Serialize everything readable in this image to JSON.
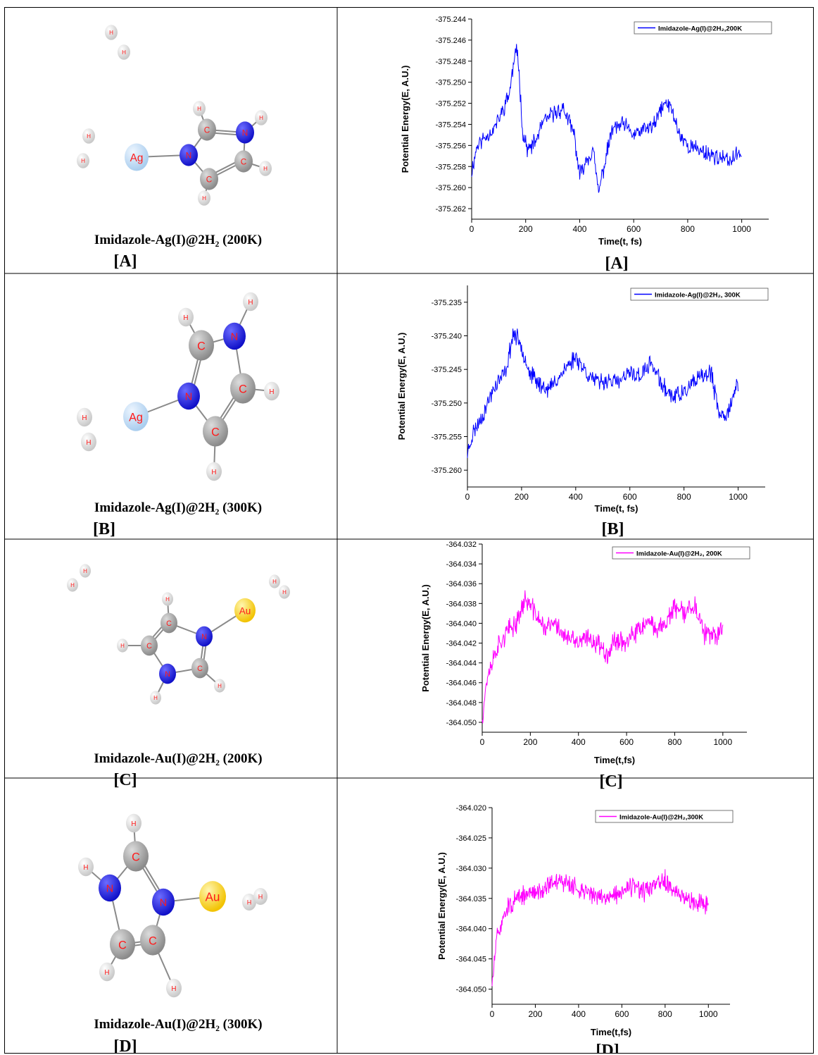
{
  "panels": [
    {
      "letter": "[A]",
      "molecule": {
        "caption": "Imidazole-Ag(I)@2H₂ (200K)",
        "metal": "Ag",
        "metal_color": "#a9cdee",
        "atoms": {
          "H": "H",
          "C": "C",
          "N": "N"
        }
      },
      "chart_data": {
        "type": "line",
        "xlabel": "Time(t, fs)",
        "ylabel": "Potential Energy(E, A.U.)",
        "xlim": [
          0,
          1100
        ],
        "ylim": [
          -375.263,
          -375.244
        ],
        "xticks": [
          0,
          200,
          400,
          600,
          800,
          1000
        ],
        "yticks": [
          -375.262,
          -375.26,
          -375.258,
          -375.256,
          -375.254,
          -375.252,
          -375.25,
          -375.248,
          -375.246,
          -375.244
        ],
        "tick_decimals": 3,
        "legend_position": "top-right",
        "series": [
          {
            "name": "Imidazole-Ag(I)@2H₂,200K",
            "color": "#0000ff",
            "x_range": [
              0,
              1000
            ],
            "keyframes": [
              [
                0,
                -375.2585
              ],
              [
                20,
                -375.256
              ],
              [
                50,
                -375.2552
              ],
              [
                80,
                -375.2545
              ],
              [
                110,
                -375.253
              ],
              [
                140,
                -375.251
              ],
              [
                160,
                -375.2475
              ],
              [
                170,
                -375.247
              ],
              [
                190,
                -375.255
              ],
              [
                210,
                -375.2565
              ],
              [
                240,
                -375.2555
              ],
              [
                260,
                -375.254
              ],
              [
                300,
                -375.253
              ],
              [
                340,
                -375.2525
              ],
              [
                380,
                -375.255
              ],
              [
                400,
                -375.259
              ],
              [
                420,
                -375.2575
              ],
              [
                450,
                -375.2565
              ],
              [
                470,
                -375.2605
              ],
              [
                490,
                -375.258
              ],
              [
                520,
                -375.2545
              ],
              [
                560,
                -375.254
              ],
              [
                600,
                -375.255
              ],
              [
                640,
                -375.2545
              ],
              [
                680,
                -375.254
              ],
              [
                700,
                -375.2525
              ],
              [
                720,
                -375.252
              ],
              [
                740,
                -375.2525
              ],
              [
                770,
                -375.255
              ],
              [
                800,
                -375.256
              ],
              [
                850,
                -375.2565
              ],
              [
                900,
                -375.257
              ],
              [
                950,
                -375.2575
              ],
              [
                980,
                -375.257
              ],
              [
                1000,
                -375.2565
              ]
            ],
            "noise": 0.0012
          }
        ]
      }
    },
    {
      "letter": "[B]",
      "molecule": {
        "caption": "Imidazole-Ag(I)@2H₂ (300K)",
        "metal": "Ag",
        "metal_color": "#a9cdee",
        "atoms": {
          "H": "H",
          "C": "C",
          "N": "N"
        }
      },
      "chart_data": {
        "type": "line",
        "xlabel": "Time(t, fs)",
        "ylabel": "Potential Energy(E, A.U.)",
        "xlim": [
          0,
          1100
        ],
        "ylim": [
          -375.2625,
          -375.2325
        ],
        "xticks": [
          0,
          200,
          400,
          600,
          800,
          1000
        ],
        "yticks": [
          -375.26,
          -375.255,
          -375.25,
          -375.245,
          -375.24,
          -375.235
        ],
        "tick_decimals": 3,
        "legend_position": "top-right",
        "series": [
          {
            "name": "Imidazole-Ag(I)@2H₂, 300K",
            "color": "#0000ff",
            "x_range": [
              0,
              1000
            ],
            "keyframes": [
              [
                0,
                -375.2575
              ],
              [
                20,
                -375.2545
              ],
              [
                60,
                -375.2515
              ],
              [
                100,
                -375.2475
              ],
              [
                140,
                -375.2455
              ],
              [
                170,
                -375.2395
              ],
              [
                200,
                -375.2415
              ],
              [
                230,
                -375.2455
              ],
              [
                260,
                -375.247
              ],
              [
                300,
                -375.248
              ],
              [
                330,
                -375.2465
              ],
              [
                370,
                -375.2445
              ],
              [
                400,
                -375.243
              ],
              [
                440,
                -375.2455
              ],
              [
                480,
                -375.247
              ],
              [
                520,
                -375.2465
              ],
              [
                560,
                -375.247
              ],
              [
                600,
                -375.2455
              ],
              [
                640,
                -375.246
              ],
              [
                680,
                -375.244
              ],
              [
                720,
                -375.2475
              ],
              [
                760,
                -375.249
              ],
              [
                800,
                -375.2485
              ],
              [
                850,
                -375.2465
              ],
              [
                900,
                -375.2455
              ],
              [
                930,
                -375.252
              ],
              [
                960,
                -375.2515
              ],
              [
                1000,
                -375.247
              ]
            ],
            "noise": 0.002
          }
        ]
      }
    },
    {
      "letter": "[C]",
      "molecule": {
        "caption": "Imidazole-Au(I)@2H₂ (200K)",
        "metal": "Au",
        "metal_color": "#f2c200",
        "atoms": {
          "H": "H",
          "C": "C",
          "N": "N"
        }
      },
      "chart_data": {
        "type": "line",
        "xlabel": "Time(t,fs)",
        "ylabel": "Potential Energy(E, A.U.)",
        "xlim": [
          0,
          1100
        ],
        "ylim": [
          -364.051,
          -364.032
        ],
        "xticks": [
          0,
          200,
          400,
          600,
          800,
          1000
        ],
        "yticks": [
          -364.05,
          -364.048,
          -364.046,
          -364.044,
          -364.042,
          -364.04,
          -364.038,
          -364.036,
          -364.034,
          -364.032
        ],
        "tick_decimals": 3,
        "legend_position": "top-right",
        "series": [
          {
            "name": "Imidazole-Au(I)@2H₂, 200K",
            "color": "#ff00ff",
            "x_range": [
              0,
              1000
            ],
            "keyframes": [
              [
                0,
                -364.0495
              ],
              [
                20,
                -364.0455
              ],
              [
                60,
                -364.0425
              ],
              [
                100,
                -364.041
              ],
              [
                140,
                -364.04
              ],
              [
                180,
                -364.0375
              ],
              [
                220,
                -364.039
              ],
              [
                260,
                -364.0405
              ],
              [
                300,
                -364.04
              ],
              [
                350,
                -364.0415
              ],
              [
                400,
                -364.042
              ],
              [
                440,
                -364.0415
              ],
              [
                480,
                -364.042
              ],
              [
                520,
                -364.043
              ],
              [
                560,
                -364.0415
              ],
              [
                600,
                -364.042
              ],
              [
                640,
                -364.041
              ],
              [
                680,
                -364.04
              ],
              [
                720,
                -364.0405
              ],
              [
                760,
                -364.04
              ],
              [
                800,
                -364.0385
              ],
              [
                840,
                -364.039
              ],
              [
                880,
                -364.038
              ],
              [
                920,
                -364.041
              ],
              [
                960,
                -364.0415
              ],
              [
                1000,
                -364.0405
              ]
            ],
            "noise": 0.0016
          }
        ]
      }
    },
    {
      "letter": "[D]",
      "molecule": {
        "caption": "Imidazole-Au(I)@2H₂ (300K)",
        "metal": "Au",
        "metal_color": "#f2c200",
        "atoms": {
          "H": "H",
          "C": "C",
          "N": "N"
        }
      },
      "chart_data": {
        "type": "line",
        "xlabel": "Time(t,fs)",
        "ylabel": "Potential Energy(E, A.U.)",
        "xlim": [
          0,
          1100
        ],
        "ylim": [
          -364.0525,
          -364.02
        ],
        "xticks": [
          0,
          200,
          400,
          600,
          800,
          1000
        ],
        "yticks": [
          -364.05,
          -364.045,
          -364.04,
          -364.035,
          -364.03,
          -364.025,
          -364.02
        ],
        "tick_decimals": 3,
        "legend_position": "top-right",
        "series": [
          {
            "name": "Imidazole-Au(I)@2H₂,300K",
            "color": "#ff00ff",
            "x_range": [
              0,
              1000
            ],
            "keyframes": [
              [
                0,
                -364.0495
              ],
              [
                20,
                -364.042
              ],
              [
                60,
                -364.037
              ],
              [
                100,
                -364.0355
              ],
              [
                150,
                -364.0345
              ],
              [
                200,
                -364.034
              ],
              [
                250,
                -364.033
              ],
              [
                300,
                -364.032
              ],
              [
                350,
                -364.0325
              ],
              [
                400,
                -364.0335
              ],
              [
                450,
                -364.034
              ],
              [
                500,
                -364.035
              ],
              [
                550,
                -364.0345
              ],
              [
                600,
                -364.034
              ],
              [
                650,
                -364.033
              ],
              [
                700,
                -364.034
              ],
              [
                750,
                -364.033
              ],
              [
                800,
                -364.032
              ],
              [
                850,
                -364.0345
              ],
              [
                900,
                -364.035
              ],
              [
                950,
                -364.0355
              ],
              [
                1000,
                -364.036
              ]
            ],
            "noise": 0.0024
          }
        ]
      }
    }
  ]
}
